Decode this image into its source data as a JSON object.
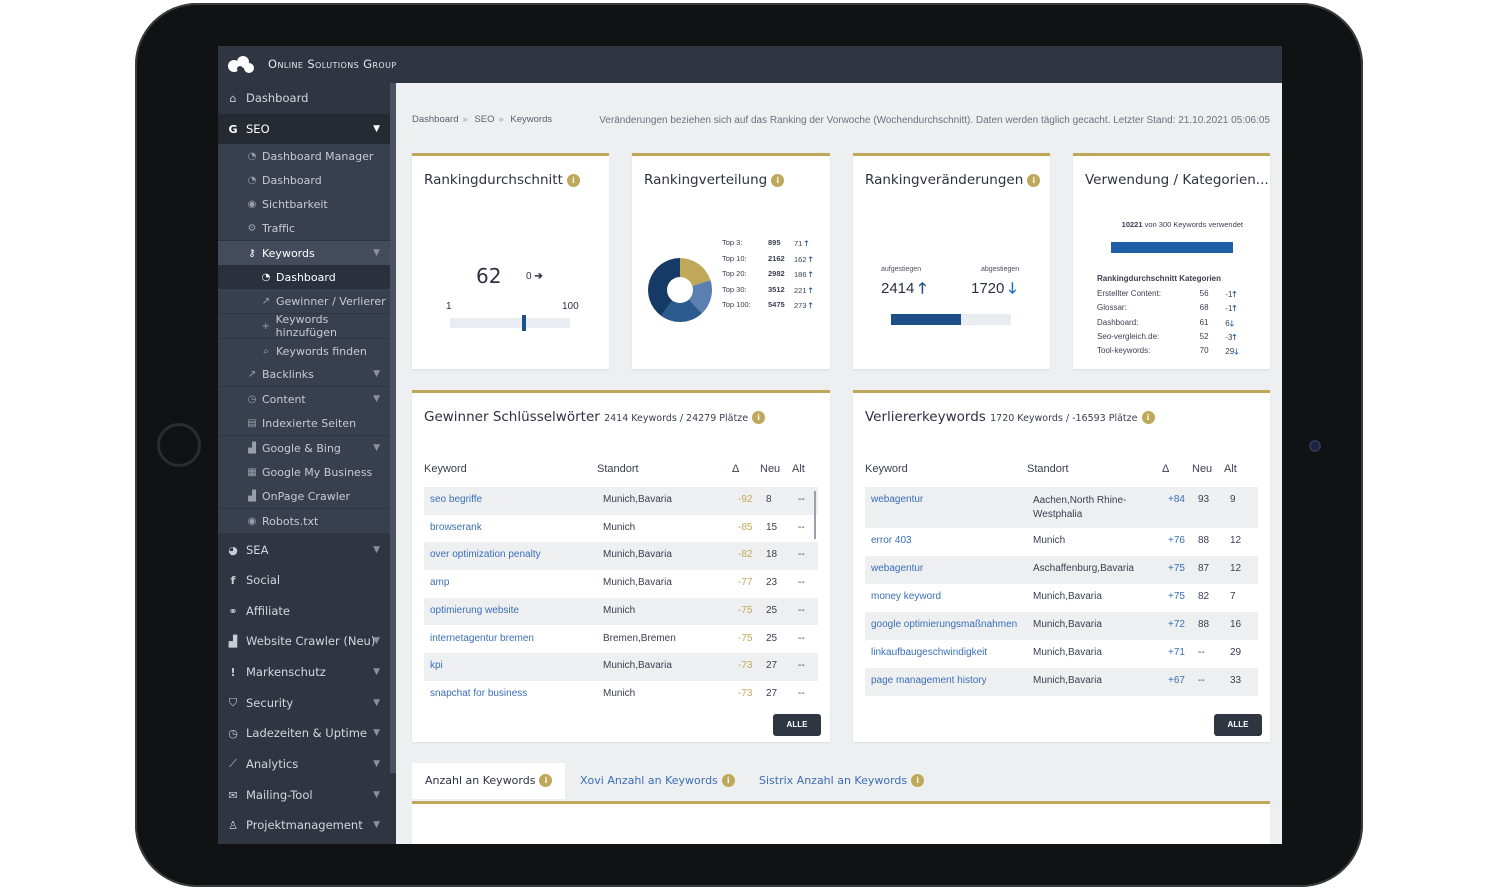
{
  "brand": {
    "name": "Online Solutions Group"
  },
  "sidebar": {
    "items": [
      {
        "label": "Dashboard",
        "icon": "home-icon"
      },
      {
        "label": "SEO",
        "icon": "google-icon"
      },
      {
        "label": "Dashboard Manager",
        "icon": "gauge-icon"
      },
      {
        "label": "Dashboard",
        "icon": "gauge-icon"
      },
      {
        "label": "Sichtbarkeit",
        "icon": "eye-icon"
      },
      {
        "label": "Traffic",
        "icon": "cogs-icon"
      },
      {
        "label": "Keywords",
        "icon": "key-icon"
      },
      {
        "label": "Dashboard",
        "icon": "gauge-icon"
      },
      {
        "label": "Gewinner / Verlierer",
        "icon": "external-link-icon"
      },
      {
        "label": "Keywords hinzufügen",
        "icon": "plus-icon"
      },
      {
        "label": "Keywords finden",
        "icon": "search-icon"
      },
      {
        "label": "Backlinks",
        "icon": "external-link-icon"
      },
      {
        "label": "Content",
        "icon": "clock-icon"
      },
      {
        "label": "Indexierte Seiten",
        "icon": "document-icon"
      },
      {
        "label": "Google & Bing",
        "icon": "area-chart-icon"
      },
      {
        "label": "Google My Business",
        "icon": "building-icon"
      },
      {
        "label": "OnPage Crawler",
        "icon": "area-chart-icon"
      },
      {
        "label": "Robots.txt",
        "icon": "eye-icon"
      },
      {
        "label": "SEA",
        "icon": "pie-chart-icon"
      },
      {
        "label": "Social",
        "icon": "facebook-icon"
      },
      {
        "label": "Affiliate",
        "icon": "handshake-icon"
      },
      {
        "label": "Website Crawler (Neu)",
        "icon": "area-chart-icon"
      },
      {
        "label": "Markenschutz",
        "icon": "exclamation-icon"
      },
      {
        "label": "Security",
        "icon": "shield-icon"
      },
      {
        "label": "Ladezeiten & Uptime",
        "icon": "clock-icon"
      },
      {
        "label": "Analytics",
        "icon": "line-chart-icon"
      },
      {
        "label": "Mailing-Tool",
        "icon": "envelope-icon"
      },
      {
        "label": "Projektmanagement",
        "icon": "users-icon"
      }
    ]
  },
  "breadcrumb": [
    "Dashboard",
    "SEO",
    "Keywords"
  ],
  "notice": "Veränderungen beziehen sich auf das Ranking der Vorwoche (Wochendurchschnitt). Daten werden täglich gecacht. Letzter Stand: 21.10.2021 05:06:05",
  "cards": {
    "avg": {
      "title": "Rankingdurchschnitt",
      "value": "62",
      "change": "0",
      "min": "1",
      "max": "100",
      "level": 0.62
    },
    "dist": {
      "title": "Rankingverteilung",
      "rows": [
        {
          "label": "Top 3:",
          "value": "895",
          "delta": "71"
        },
        {
          "label": "Top 10:",
          "value": "2162",
          "delta": "162"
        },
        {
          "label": "Top 20:",
          "value": "2982",
          "delta": "186"
        },
        {
          "label": "Top 30:",
          "value": "3512",
          "delta": "221"
        },
        {
          "label": "Top 100:",
          "value": "5475",
          "delta": "273"
        }
      ]
    },
    "changes": {
      "title": "Rankingveränderungen",
      "up_label": "aufgestiegen",
      "up_value": "2414",
      "down_label": "abgestiegen",
      "down_value": "1720",
      "up_share": 0.58
    },
    "usage": {
      "title": "Verwendung / Kategorien...",
      "used_value": "10221",
      "used_text": "von 300 Keywords verwendet",
      "cat_title": "Rankingdurchschnitt Kategorien",
      "categories": [
        {
          "name": "Erstellter Content:",
          "value": "56",
          "delta": "-1",
          "dir": "up"
        },
        {
          "name": "Glossar:",
          "value": "68",
          "delta": "-1",
          "dir": "up"
        },
        {
          "name": "Dashboard:",
          "value": "61",
          "delta": "6",
          "dir": "down"
        },
        {
          "name": "Seo-vergleich.de:",
          "value": "52",
          "delta": "-3",
          "dir": "up"
        },
        {
          "name": "Tool-keywords:",
          "value": "70",
          "delta": "29",
          "dir": "down"
        }
      ]
    }
  },
  "winners": {
    "title": "Gewinner Schlüsselwörter",
    "subtitle": "2414 Keywords / 24279 Plätze",
    "headers": [
      "Keyword",
      "Standort",
      "Δ",
      "Neu",
      "Alt"
    ],
    "rows": [
      [
        "seo begriffe",
        "Munich,Bavaria",
        "-92",
        "8",
        "--"
      ],
      [
        "browserank",
        "Munich",
        "-85",
        "15",
        "--"
      ],
      [
        "over optimization penalty",
        "Munich,Bavaria",
        "-82",
        "18",
        "--"
      ],
      [
        "amp",
        "Munich,Bavaria",
        "-77",
        "23",
        "--"
      ],
      [
        "optimierung website",
        "Munich",
        "-75",
        "25",
        "--"
      ],
      [
        "internetagentur bremen",
        "Bremen,Bremen",
        "-75",
        "25",
        "--"
      ],
      [
        "kpi",
        "Munich,Bavaria",
        "-73",
        "27",
        "--"
      ],
      [
        "snapchat for business",
        "Munich",
        "-73",
        "27",
        "--"
      ]
    ],
    "button": "ALLE"
  },
  "losers": {
    "title": "Verliererkeywords",
    "subtitle": "1720 Keywords / -16593 Plätze",
    "headers": [
      "Keyword",
      "Standort",
      "Δ",
      "Neu",
      "Alt"
    ],
    "rows": [
      [
        "webagentur",
        "Aachen,North Rhine-Westphalia",
        "+84",
        "93",
        "9"
      ],
      [
        "error 403",
        "Munich",
        "+76",
        "88",
        "12"
      ],
      [
        "webagentur",
        "Aschaffenburg,Bavaria",
        "+75",
        "87",
        "12"
      ],
      [
        "money keyword",
        "Munich,Bavaria",
        "+75",
        "82",
        "7"
      ],
      [
        "google optimierungsmaßnahmen",
        "Munich,Bavaria",
        "+72",
        "88",
        "16"
      ],
      [
        "linkaufbaugeschwindigkeit",
        "Munich,Bavaria",
        "+71",
        "--",
        "29"
      ],
      [
        "page management history",
        "Munich,Bavaria",
        "+67",
        "--",
        "33"
      ]
    ],
    "button": "ALLE"
  },
  "tabs": [
    {
      "label": "Anzahl an Keywords"
    },
    {
      "label": "Xovi Anzahl an Keywords"
    },
    {
      "label": "Sistrix Anzahl an Keywords"
    }
  ],
  "colors": {
    "accent": "#c0a85a",
    "dark": "#2f3541",
    "link": "#3a6fb8",
    "navy": "#1f4f8a"
  }
}
